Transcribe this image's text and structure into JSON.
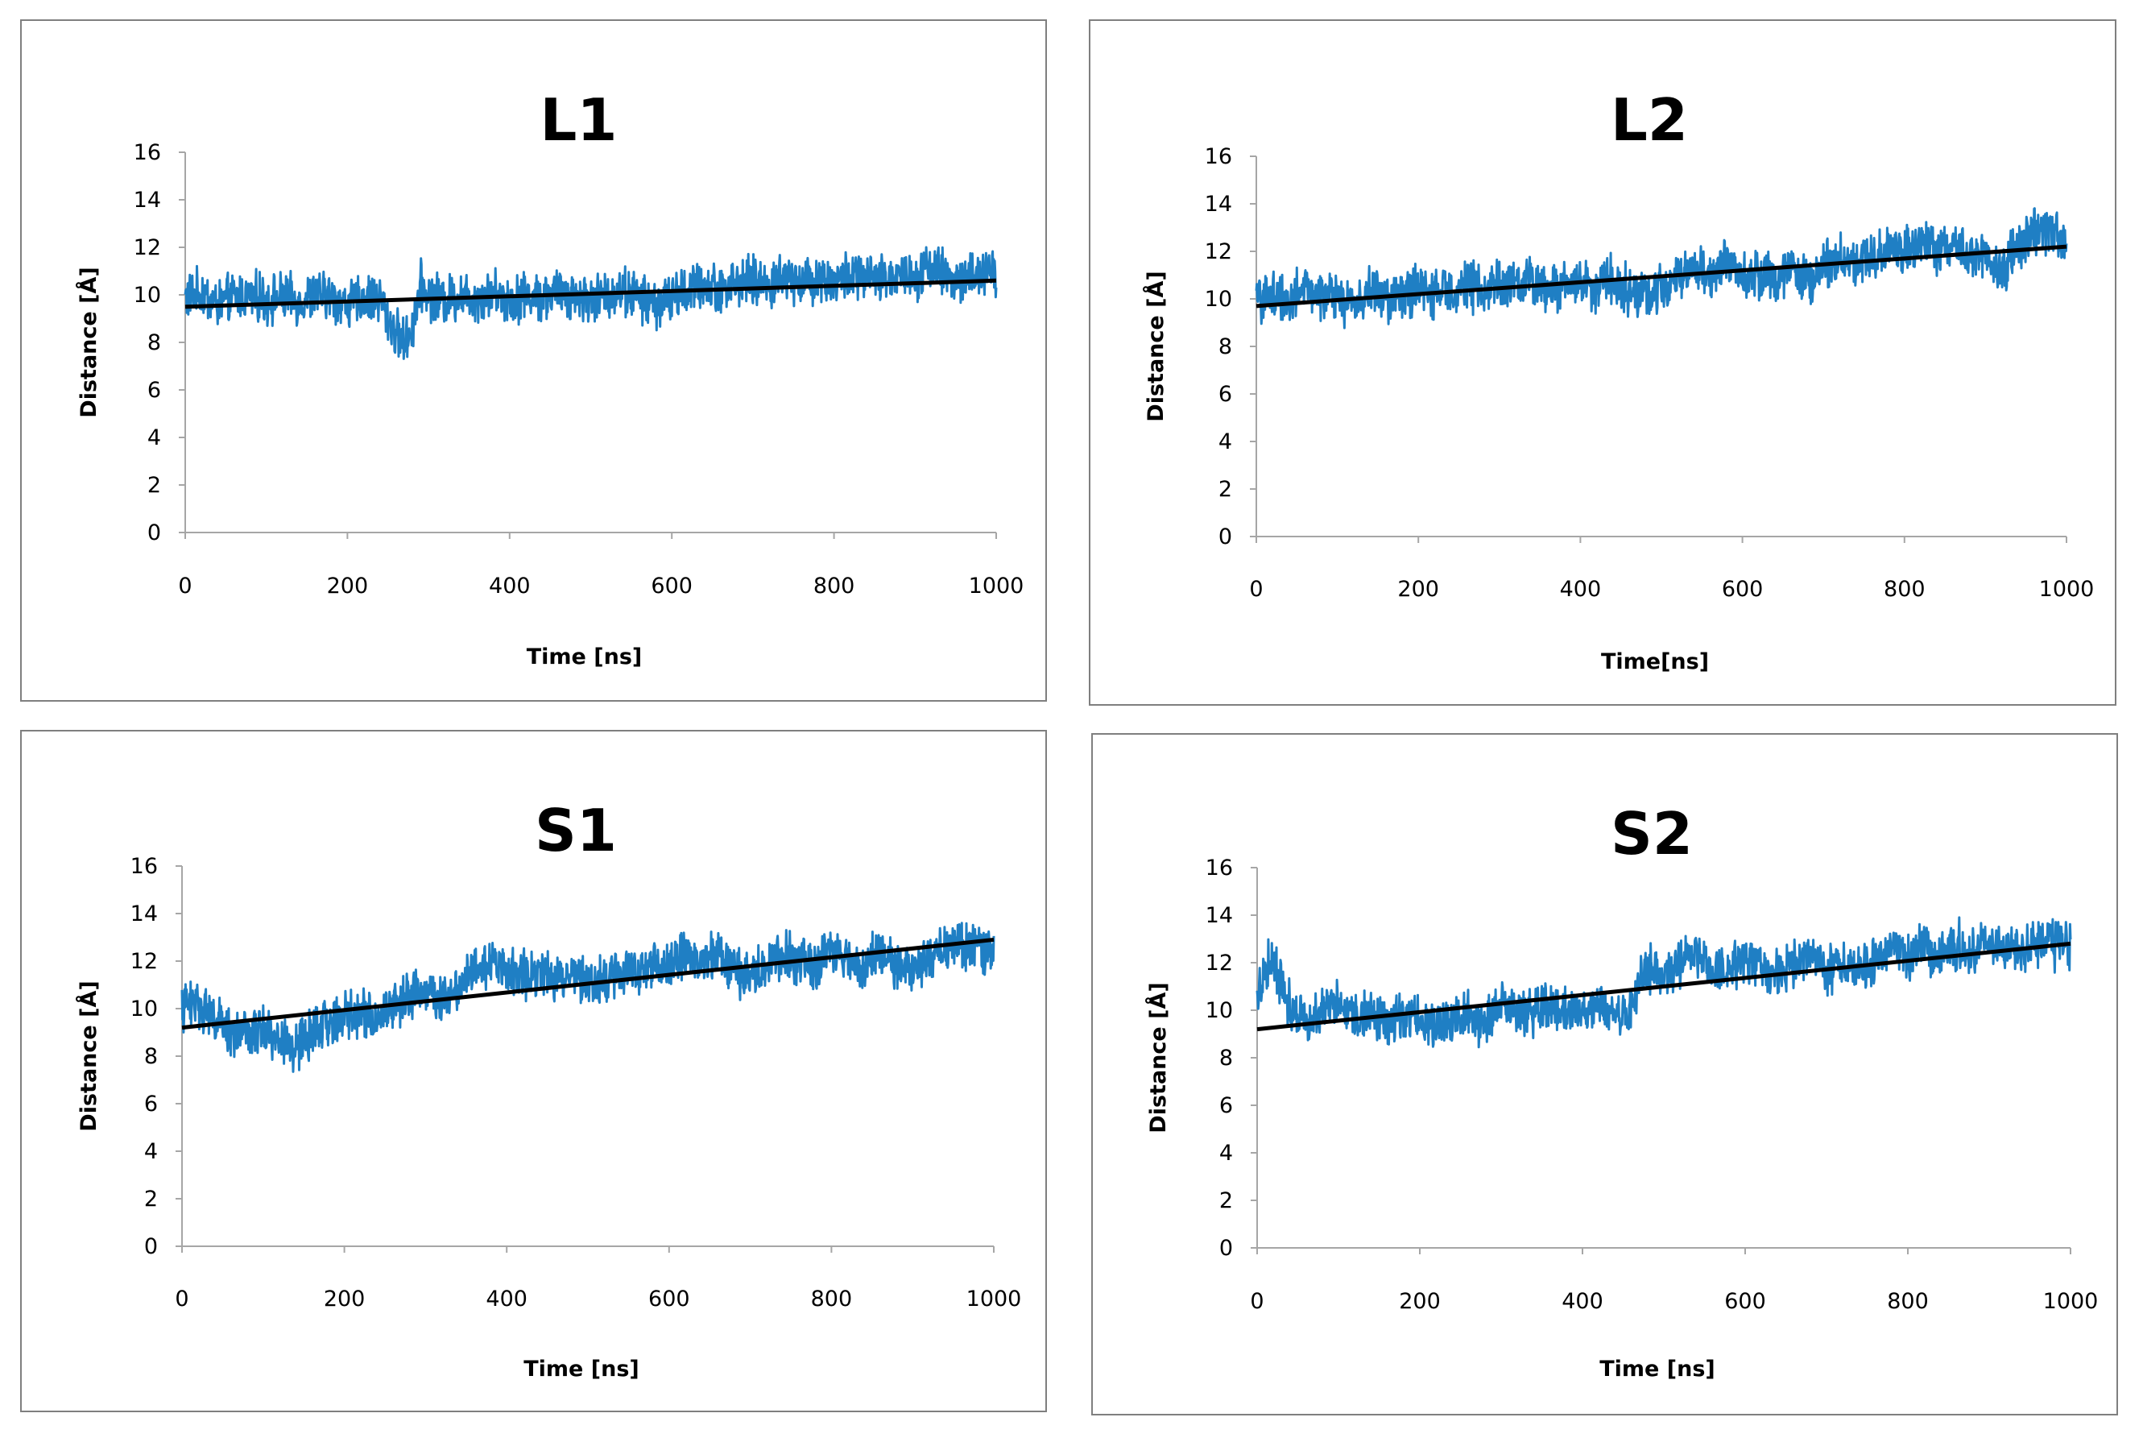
{
  "figure": {
    "colors": {
      "series": "#1f7fc4",
      "trend": "#000000",
      "axis": "#a6a6a6",
      "border": "#7f7f7f"
    }
  },
  "chart_data": [
    {
      "type": "line",
      "title": "L1",
      "xlabel": "Time [ns]",
      "ylabel": "Distance [Å]",
      "xlim": [
        0,
        1000
      ],
      "ylim": [
        0,
        16
      ],
      "xticks": [
        "0",
        "200",
        "400",
        "600",
        "800",
        "1000"
      ],
      "yticks": [
        "0",
        "2",
        "4",
        "6",
        "8",
        "10",
        "12",
        "14",
        "16"
      ],
      "grid": false,
      "legend": "none",
      "series": [
        {
          "name": "Distance",
          "color": "#1f7fc4",
          "x": [
            0,
            20,
            40,
            60,
            80,
            100,
            120,
            140,
            160,
            180,
            200,
            220,
            240,
            250,
            260,
            270,
            280,
            290,
            300,
            320,
            340,
            360,
            380,
            400,
            420,
            440,
            460,
            480,
            500,
            520,
            540,
            560,
            580,
            600,
            620,
            640,
            660,
            680,
            700,
            720,
            740,
            760,
            780,
            800,
            820,
            840,
            860,
            880,
            900,
            920,
            940,
            960,
            980,
            1000
          ],
          "y": [
            9.9,
            10.1,
            9.6,
            9.9,
            10.0,
            9.8,
            9.9,
            9.7,
            10.0,
            9.9,
            9.6,
            9.8,
            9.9,
            9.0,
            8.4,
            8.0,
            8.6,
            10.4,
            10.0,
            9.8,
            10.0,
            9.9,
            10.1,
            9.8,
            10.0,
            9.9,
            10.1,
            10.0,
            9.8,
            10.0,
            10.2,
            9.9,
            9.6,
            9.9,
            10.2,
            10.4,
            10.3,
            10.5,
            10.6,
            10.4,
            10.8,
            10.6,
            10.7,
            10.6,
            10.8,
            10.7,
            10.6,
            10.9,
            10.8,
            11.3,
            10.7,
            10.6,
            10.9,
            10.8
          ]
        },
        {
          "name": "Linear trend",
          "color": "#000000",
          "x": [
            0,
            1000
          ],
          "y": [
            9.5,
            10.6
          ]
        }
      ]
    },
    {
      "type": "line",
      "title": "L2",
      "xlabel": "Time[ns]",
      "ylabel": "Distance [Å]",
      "xlim": [
        0,
        1000
      ],
      "ylim": [
        0,
        16
      ],
      "xticks": [
        "0",
        "200",
        "400",
        "600",
        "800",
        "1000"
      ],
      "yticks": [
        "0",
        "2",
        "4",
        "6",
        "8",
        "10",
        "12",
        "14",
        "16"
      ],
      "grid": false,
      "legend": "none",
      "series": [
        {
          "name": "Distance",
          "color": "#1f7fc4",
          "x": [
            0,
            20,
            40,
            60,
            80,
            100,
            120,
            140,
            160,
            180,
            200,
            220,
            240,
            260,
            280,
            300,
            320,
            340,
            360,
            380,
            400,
            420,
            440,
            460,
            480,
            500,
            520,
            540,
            560,
            580,
            600,
            620,
            640,
            660,
            680,
            700,
            720,
            740,
            760,
            780,
            800,
            820,
            840,
            860,
            880,
            900,
            920,
            940,
            960,
            980,
            1000
          ],
          "y": [
            9.9,
            10.2,
            10.0,
            10.4,
            10.2,
            10.0,
            9.8,
            10.3,
            10.0,
            10.2,
            10.4,
            10.1,
            10.5,
            10.6,
            10.3,
            10.7,
            10.5,
            10.8,
            10.4,
            10.6,
            10.7,
            10.5,
            10.9,
            10.3,
            10.1,
            10.5,
            11.0,
            11.4,
            10.8,
            11.6,
            11.2,
            11.0,
            10.9,
            11.3,
            10.6,
            11.4,
            11.8,
            11.5,
            11.9,
            12.0,
            12.1,
            12.3,
            12.0,
            12.5,
            11.6,
            11.9,
            11.2,
            12.2,
            12.8,
            12.7,
            12.6
          ]
        },
        {
          "name": "Linear trend",
          "color": "#000000",
          "x": [
            0,
            1000
          ],
          "y": [
            9.7,
            12.2
          ]
        }
      ]
    },
    {
      "type": "line",
      "title": "S1",
      "xlabel": "Time [ns]",
      "ylabel": "Distance [Å]",
      "xlim": [
        0,
        1000
      ],
      "ylim": [
        0,
        16
      ],
      "xticks": [
        "0",
        "200",
        "400",
        "600",
        "800",
        "1000"
      ],
      "yticks": [
        "0",
        "2",
        "4",
        "6",
        "8",
        "10",
        "12",
        "14",
        "16"
      ],
      "grid": false,
      "legend": "none",
      "series": [
        {
          "name": "Distance",
          "color": "#1f7fc4",
          "x": [
            0,
            20,
            40,
            60,
            80,
            100,
            120,
            140,
            160,
            180,
            200,
            220,
            240,
            260,
            280,
            300,
            320,
            340,
            360,
            380,
            400,
            420,
            440,
            460,
            480,
            500,
            520,
            540,
            560,
            580,
            600,
            620,
            640,
            660,
            680,
            700,
            720,
            740,
            760,
            780,
            800,
            820,
            840,
            860,
            880,
            900,
            920,
            940,
            960,
            980,
            1000
          ],
          "y": [
            10.0,
            10.3,
            9.6,
            9.0,
            8.8,
            9.2,
            8.6,
            8.4,
            9.0,
            9.4,
            9.7,
            9.9,
            9.6,
            10.2,
            10.5,
            10.8,
            10.4,
            11.0,
            11.8,
            12.0,
            11.6,
            11.4,
            11.7,
            11.2,
            11.5,
            11.3,
            11.1,
            11.6,
            11.4,
            12.0,
            11.8,
            12.2,
            11.9,
            12.3,
            11.7,
            11.2,
            12.0,
            12.3,
            12.1,
            11.8,
            12.4,
            12.0,
            11.9,
            12.2,
            11.8,
            11.6,
            12.2,
            12.5,
            12.7,
            12.4,
            12.3
          ]
        },
        {
          "name": "Linear trend",
          "color": "#000000",
          "x": [
            0,
            1000
          ],
          "y": [
            9.2,
            12.9
          ]
        }
      ]
    },
    {
      "type": "line",
      "title": "S2",
      "xlabel": "Time [ns]",
      "ylabel": "Distance [Å]",
      "xlim": [
        0,
        1000
      ],
      "ylim": [
        0,
        16
      ],
      "xticks": [
        "0",
        "200",
        "400",
        "600",
        "800",
        "1000"
      ],
      "yticks": [
        "0",
        "2",
        "4",
        "6",
        "8",
        "10",
        "12",
        "14",
        "16"
      ],
      "grid": false,
      "legend": "none",
      "series": [
        {
          "name": "Distance",
          "color": "#1f7fc4",
          "x": [
            0,
            10,
            20,
            30,
            40,
            60,
            80,
            100,
            120,
            140,
            160,
            180,
            200,
            220,
            240,
            260,
            280,
            300,
            320,
            340,
            360,
            380,
            400,
            420,
            440,
            460,
            470,
            480,
            500,
            520,
            540,
            560,
            580,
            600,
            620,
            640,
            660,
            680,
            700,
            720,
            740,
            760,
            780,
            800,
            820,
            840,
            860,
            880,
            900,
            920,
            940,
            960,
            980,
            1000
          ],
          "y": [
            10.5,
            11.8,
            12.2,
            11.0,
            10.2,
            9.8,
            10.0,
            10.3,
            9.7,
            9.9,
            9.5,
            9.8,
            9.6,
            9.4,
            9.7,
            9.8,
            9.5,
            10.1,
            10.0,
            9.8,
            10.2,
            10.0,
            9.9,
            10.1,
            9.8,
            10.0,
            11.4,
            11.8,
            11.4,
            12.0,
            12.3,
            11.8,
            11.6,
            12.0,
            11.8,
            11.5,
            11.9,
            12.1,
            11.7,
            11.8,
            11.6,
            12.0,
            12.4,
            12.2,
            12.6,
            12.3,
            12.8,
            12.5,
            13.0,
            12.6,
            12.4,
            12.9,
            12.7,
            12.8
          ]
        },
        {
          "name": "Linear trend",
          "color": "#000000",
          "x": [
            0,
            1000
          ],
          "y": [
            9.2,
            12.8
          ]
        }
      ]
    }
  ]
}
